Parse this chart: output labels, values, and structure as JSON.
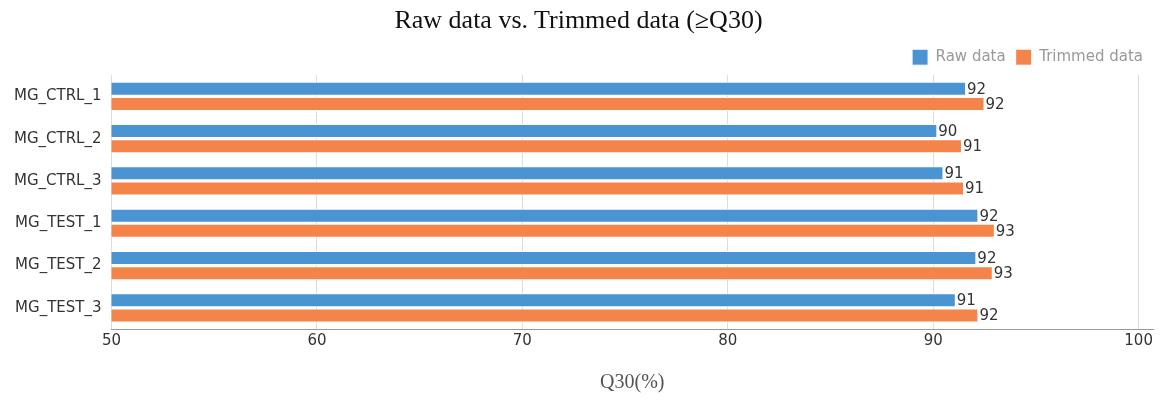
{
  "chart_data": {
    "type": "bar",
    "orientation": "horizontal",
    "title": "Raw data vs. Trimmed data (≥Q30)",
    "xlabel": "Q30(%)",
    "categories": [
      "MG_CTRL_1",
      "MG_CTRL_2",
      "MG_CTRL_3",
      "MG_TEST_1",
      "MG_TEST_2",
      "MG_TEST_3"
    ],
    "series": [
      {
        "name": "Raw data",
        "color": "#4a95d1",
        "values": [
          91.6,
          90.2,
          90.5,
          92.2,
          92.1,
          91.1
        ],
        "value_labels": [
          "92",
          "90",
          "91",
          "92",
          "92",
          "91"
        ]
      },
      {
        "name": "Trimmed data",
        "color": "#f4844a",
        "values": [
          92.5,
          91.4,
          91.5,
          93.0,
          92.9,
          92.2
        ],
        "value_labels": [
          "92",
          "91",
          "91",
          "93",
          "93",
          "92"
        ]
      }
    ],
    "xlim": [
      50,
      100.7
    ],
    "xticks": [
      50,
      60,
      70,
      80,
      90,
      100
    ],
    "grid": "x",
    "legend": "top right"
  }
}
